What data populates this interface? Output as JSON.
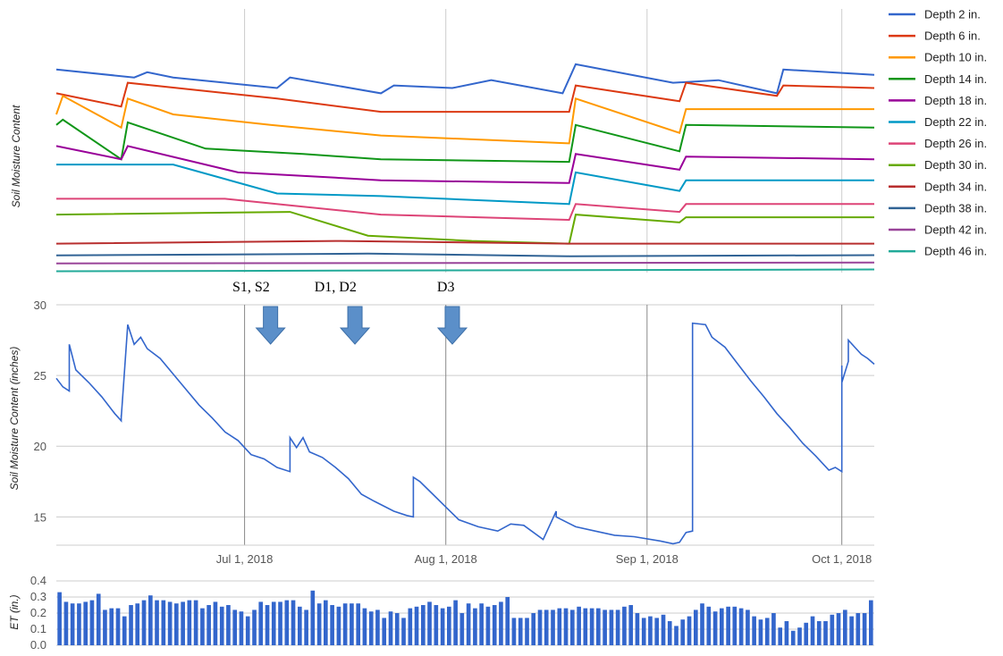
{
  "chart_data": [
    {
      "id": "top",
      "type": "line",
      "title": "",
      "ylabel": "Soil Moisture Content",
      "x_domain": [
        "2018-06-02",
        "2018-10-06"
      ],
      "legend_position": "right",
      "gridlines_x": [
        "2018-07-01",
        "2018-08-01",
        "2018-09-01",
        "2018-10-01"
      ],
      "series": [
        {
          "name": "Depth 2 in.",
          "color": "#3366cc",
          "points": [
            [
              "2018-06-02",
              0.77
            ],
            [
              "2018-06-14",
              0.74
            ],
            [
              "2018-06-16",
              0.76
            ],
            [
              "2018-06-20",
              0.74
            ],
            [
              "2018-07-06",
              0.7
            ],
            [
              "2018-07-08",
              0.74
            ],
            [
              "2018-07-22",
              0.68
            ],
            [
              "2018-07-24",
              0.71
            ],
            [
              "2018-08-02",
              0.7
            ],
            [
              "2018-08-08",
              0.73
            ],
            [
              "2018-08-19",
              0.68
            ],
            [
              "2018-08-21",
              0.79
            ],
            [
              "2018-09-05",
              0.72
            ],
            [
              "2018-09-12",
              0.73
            ],
            [
              "2018-09-21",
              0.68
            ],
            [
              "2018-09-22",
              0.77
            ],
            [
              "2018-10-06",
              0.75
            ]
          ]
        },
        {
          "name": "Depth 6 in.",
          "color": "#dc3912",
          "points": [
            [
              "2018-06-02",
              0.68
            ],
            [
              "2018-06-12",
              0.63
            ],
            [
              "2018-06-13",
              0.72
            ],
            [
              "2018-07-06",
              0.66
            ],
            [
              "2018-07-22",
              0.61
            ],
            [
              "2018-08-20",
              0.61
            ],
            [
              "2018-08-21",
              0.71
            ],
            [
              "2018-09-06",
              0.65
            ],
            [
              "2018-09-07",
              0.72
            ],
            [
              "2018-09-21",
              0.67
            ],
            [
              "2018-09-22",
              0.71
            ],
            [
              "2018-10-06",
              0.7
            ]
          ]
        },
        {
          "name": "Depth 10 in.",
          "color": "#ff9900",
          "points": [
            [
              "2018-06-02",
              0.6
            ],
            [
              "2018-06-03",
              0.67
            ],
            [
              "2018-06-12",
              0.55
            ],
            [
              "2018-06-13",
              0.66
            ],
            [
              "2018-06-20",
              0.6
            ],
            [
              "2018-07-05",
              0.56
            ],
            [
              "2018-07-22",
              0.52
            ],
            [
              "2018-08-20",
              0.49
            ],
            [
              "2018-08-21",
              0.66
            ],
            [
              "2018-09-06",
              0.53
            ],
            [
              "2018-09-07",
              0.62
            ],
            [
              "2018-10-06",
              0.62
            ]
          ]
        },
        {
          "name": "Depth 14 in.",
          "color": "#109618",
          "points": [
            [
              "2018-06-02",
              0.56
            ],
            [
              "2018-06-03",
              0.58
            ],
            [
              "2018-06-12",
              0.43
            ],
            [
              "2018-06-13",
              0.57
            ],
            [
              "2018-06-25",
              0.47
            ],
            [
              "2018-07-10",
              0.45
            ],
            [
              "2018-07-22",
              0.43
            ],
            [
              "2018-08-20",
              0.42
            ],
            [
              "2018-08-21",
              0.56
            ],
            [
              "2018-09-06",
              0.46
            ],
            [
              "2018-09-07",
              0.56
            ],
            [
              "2018-10-06",
              0.55
            ]
          ]
        },
        {
          "name": "Depth 18 in.",
          "color": "#990099",
          "points": [
            [
              "2018-06-02",
              0.48
            ],
            [
              "2018-06-12",
              0.43
            ],
            [
              "2018-06-13",
              0.48
            ],
            [
              "2018-06-30",
              0.38
            ],
            [
              "2018-07-15",
              0.36
            ],
            [
              "2018-07-22",
              0.35
            ],
            [
              "2018-08-20",
              0.34
            ],
            [
              "2018-08-21",
              0.45
            ],
            [
              "2018-09-06",
              0.39
            ],
            [
              "2018-09-07",
              0.44
            ],
            [
              "2018-10-06",
              0.43
            ]
          ]
        },
        {
          "name": "Depth 22 in.",
          "color": "#0099c6",
          "points": [
            [
              "2018-06-02",
              0.41
            ],
            [
              "2018-06-20",
              0.41
            ],
            [
              "2018-07-06",
              0.3
            ],
            [
              "2018-07-22",
              0.29
            ],
            [
              "2018-08-20",
              0.26
            ],
            [
              "2018-08-21",
              0.38
            ],
            [
              "2018-09-06",
              0.31
            ],
            [
              "2018-09-07",
              0.35
            ],
            [
              "2018-10-06",
              0.35
            ]
          ]
        },
        {
          "name": "Depth 26 in.",
          "color": "#dd4477",
          "points": [
            [
              "2018-06-02",
              0.28
            ],
            [
              "2018-06-28",
              0.28
            ],
            [
              "2018-07-10",
              0.25
            ],
            [
              "2018-07-22",
              0.22
            ],
            [
              "2018-08-20",
              0.2
            ],
            [
              "2018-08-21",
              0.26
            ],
            [
              "2018-09-06",
              0.23
            ],
            [
              "2018-09-07",
              0.26
            ],
            [
              "2018-10-06",
              0.26
            ]
          ]
        },
        {
          "name": "Depth 30 in.",
          "color": "#66aa00",
          "points": [
            [
              "2018-06-02",
              0.22
            ],
            [
              "2018-07-08",
              0.23
            ],
            [
              "2018-07-20",
              0.14
            ],
            [
              "2018-08-05",
              0.12
            ],
            [
              "2018-08-20",
              0.11
            ],
            [
              "2018-08-21",
              0.22
            ],
            [
              "2018-09-06",
              0.19
            ],
            [
              "2018-09-07",
              0.21
            ],
            [
              "2018-10-06",
              0.21
            ]
          ]
        },
        {
          "name": "Depth 34 in.",
          "color": "#b82e2e",
          "points": [
            [
              "2018-06-02",
              0.11
            ],
            [
              "2018-07-15",
              0.12
            ],
            [
              "2018-08-20",
              0.11
            ],
            [
              "2018-10-06",
              0.11
            ]
          ]
        },
        {
          "name": "Depth 38 in.",
          "color": "#316395",
          "points": [
            [
              "2018-06-02",
              0.065
            ],
            [
              "2018-07-20",
              0.072
            ],
            [
              "2018-08-20",
              0.062
            ],
            [
              "2018-10-06",
              0.066
            ]
          ]
        },
        {
          "name": "Depth 42 in.",
          "color": "#994499",
          "points": [
            [
              "2018-06-02",
              0.035
            ],
            [
              "2018-10-06",
              0.038
            ]
          ]
        },
        {
          "name": "Depth 46 in.",
          "color": "#22aa99",
          "points": [
            [
              "2018-06-02",
              0.005
            ],
            [
              "2018-10-06",
              0.012
            ]
          ]
        }
      ],
      "annotations": [
        {
          "text": "S1, S2",
          "x": "2018-07-02"
        },
        {
          "text": "D1, D2",
          "x": "2018-07-15"
        },
        {
          "text": "D3",
          "x": "2018-08-01"
        }
      ]
    },
    {
      "id": "middle",
      "type": "line",
      "title": "",
      "ylabel": "Soil Moisture Content (inches)",
      "ylim": [
        13,
        30
      ],
      "yticks": [
        15,
        20,
        25,
        30
      ],
      "x_domain": [
        "2018-06-02",
        "2018-10-06"
      ],
      "xticks": [
        {
          "date": "2018-07-01",
          "label": "Jul 1, 2018"
        },
        {
          "date": "2018-08-01",
          "label": "Aug 1, 2018"
        },
        {
          "date": "2018-09-01",
          "label": "Sep 1, 2018"
        },
        {
          "date": "2018-10-01",
          "label": "Oct 1, 2018"
        }
      ],
      "arrows_at": [
        "2018-07-05",
        "2018-07-18",
        "2018-08-02"
      ],
      "arrow_color": "#5b8fc9",
      "series": [
        {
          "name": "",
          "color": "#3366cc",
          "points": [
            [
              "2018-06-02",
              24.8
            ],
            [
              "2018-06-03",
              24.2
            ],
            [
              "2018-06-04",
              23.9
            ],
            [
              "2018-06-04",
              27.2
            ],
            [
              "2018-06-05",
              25.4
            ],
            [
              "2018-06-07",
              24.5
            ],
            [
              "2018-06-09",
              23.5
            ],
            [
              "2018-06-11",
              22.3
            ],
            [
              "2018-06-12",
              21.8
            ],
            [
              "2018-06-12",
              22.2
            ],
            [
              "2018-06-12",
              22.0
            ],
            [
              "2018-06-13",
              28.6
            ],
            [
              "2018-06-14",
              27.2
            ],
            [
              "2018-06-15",
              27.7
            ],
            [
              "2018-06-16",
              26.9
            ],
            [
              "2018-06-18",
              26.2
            ],
            [
              "2018-06-20",
              25.1
            ],
            [
              "2018-06-22",
              24.0
            ],
            [
              "2018-06-24",
              22.9
            ],
            [
              "2018-06-26",
              22.0
            ],
            [
              "2018-06-28",
              21.0
            ],
            [
              "2018-06-30",
              20.4
            ],
            [
              "2018-07-02",
              19.4
            ],
            [
              "2018-07-04",
              19.1
            ],
            [
              "2018-07-06",
              18.5
            ],
            [
              "2018-07-08",
              18.2
            ],
            [
              "2018-07-08",
              20.6
            ],
            [
              "2018-07-09",
              19.9
            ],
            [
              "2018-07-10",
              20.6
            ],
            [
              "2018-07-11",
              19.6
            ],
            [
              "2018-07-13",
              19.2
            ],
            [
              "2018-07-15",
              18.5
            ],
            [
              "2018-07-17",
              17.7
            ],
            [
              "2018-07-19",
              16.6
            ],
            [
              "2018-07-21",
              16.1
            ],
            [
              "2018-07-24",
              15.4
            ],
            [
              "2018-07-26",
              15.1
            ],
            [
              "2018-07-27",
              15.0
            ],
            [
              "2018-07-27",
              17.8
            ],
            [
              "2018-07-28",
              17.5
            ],
            [
              "2018-07-30",
              16.6
            ],
            [
              "2018-08-01",
              15.7
            ],
            [
              "2018-08-03",
              14.8
            ],
            [
              "2018-08-06",
              14.3
            ],
            [
              "2018-08-09",
              14.0
            ],
            [
              "2018-08-11",
              14.5
            ],
            [
              "2018-08-13",
              14.4
            ],
            [
              "2018-08-16",
              13.4
            ],
            [
              "2018-08-18",
              15.4
            ],
            [
              "2018-08-18",
              15.0
            ],
            [
              "2018-08-21",
              14.3
            ],
            [
              "2018-08-24",
              14.0
            ],
            [
              "2018-08-27",
              13.7
            ],
            [
              "2018-08-30",
              13.6
            ],
            [
              "2018-09-03",
              13.3
            ],
            [
              "2018-09-05",
              13.1
            ],
            [
              "2018-09-06",
              13.2
            ],
            [
              "2018-09-07",
              13.9
            ],
            [
              "2018-09-08",
              14.0
            ],
            [
              "2018-09-08",
              28.7
            ],
            [
              "2018-09-10",
              28.6
            ],
            [
              "2018-09-11",
              27.7
            ],
            [
              "2018-09-13",
              27.0
            ],
            [
              "2018-09-15",
              25.8
            ],
            [
              "2018-09-17",
              24.6
            ],
            [
              "2018-09-19",
              23.5
            ],
            [
              "2018-09-21",
              22.3
            ],
            [
              "2018-09-23",
              21.3
            ],
            [
              "2018-09-25",
              20.2
            ],
            [
              "2018-09-27",
              19.3
            ],
            [
              "2018-09-29",
              18.3
            ],
            [
              "2018-09-30",
              18.5
            ],
            [
              "2018-10-01",
              18.2
            ],
            [
              "2018-10-01",
              25.7
            ],
            [
              "2018-10-01",
              24.5
            ],
            [
              "2018-10-02",
              26.0
            ],
            [
              "2018-10-02",
              27.5
            ],
            [
              "2018-10-03",
              27.0
            ],
            [
              "2018-10-04",
              26.5
            ],
            [
              "2018-10-05",
              26.2
            ],
            [
              "2018-10-06",
              25.8
            ]
          ]
        }
      ]
    },
    {
      "id": "bottom",
      "type": "bar",
      "title": "",
      "ylabel": "ET (in.)",
      "ylim": [
        0,
        0.4
      ],
      "yticks": [
        0,
        0.1,
        0.2,
        0.3,
        0.4
      ],
      "x_domain": [
        "2018-06-02",
        "2018-10-06"
      ],
      "bar_color": "#3366cc",
      "values": [
        0.33,
        0.27,
        0.26,
        0.26,
        0.27,
        0.28,
        0.32,
        0.22,
        0.23,
        0.23,
        0.18,
        0.25,
        0.26,
        0.28,
        0.31,
        0.28,
        0.28,
        0.27,
        0.26,
        0.27,
        0.28,
        0.28,
        0.23,
        0.25,
        0.27,
        0.24,
        0.25,
        0.22,
        0.21,
        0.18,
        0.22,
        0.27,
        0.25,
        0.27,
        0.27,
        0.28,
        0.28,
        0.24,
        0.22,
        0.34,
        0.26,
        0.28,
        0.25,
        0.24,
        0.26,
        0.26,
        0.26,
        0.23,
        0.21,
        0.22,
        0.17,
        0.21,
        0.2,
        0.17,
        0.23,
        0.24,
        0.25,
        0.27,
        0.25,
        0.23,
        0.24,
        0.28,
        0.2,
        0.26,
        0.23,
        0.26,
        0.24,
        0.25,
        0.27,
        0.3,
        0.17,
        0.17,
        0.17,
        0.2,
        0.22,
        0.22,
        0.22,
        0.23,
        0.23,
        0.22,
        0.24,
        0.23,
        0.23,
        0.23,
        0.22,
        0.22,
        0.22,
        0.24,
        0.25,
        0.2,
        0.17,
        0.18,
        0.17,
        0.19,
        0.15,
        0.12,
        0.16,
        0.18,
        0.22,
        0.26,
        0.24,
        0.21,
        0.23,
        0.24,
        0.24,
        0.23,
        0.22,
        0.18,
        0.16,
        0.17,
        0.2,
        0.11,
        0.15,
        0.09,
        0.11,
        0.14,
        0.18,
        0.15,
        0.15,
        0.19,
        0.2,
        0.22,
        0.18,
        0.2,
        0.2,
        0.28
      ]
    }
  ]
}
